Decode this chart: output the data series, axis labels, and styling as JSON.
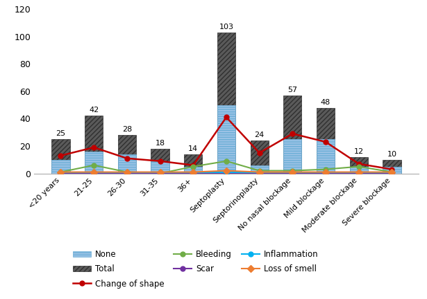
{
  "categories": [
    "<20 years",
    "21-25",
    "26-30",
    "31-35",
    "36+",
    "Septoplasty",
    "Septorinoplasty",
    "No nasal blockage",
    "Mild blockage",
    "Moderate blockage",
    "Severe blockage"
  ],
  "total_values": [
    25,
    42,
    28,
    18,
    14,
    103,
    24,
    57,
    48,
    12,
    10
  ],
  "none_values": [
    10,
    16,
    14,
    9,
    5,
    50,
    6,
    25,
    25,
    5,
    5
  ],
  "change_of_shape": [
    13,
    19,
    11,
    9,
    6,
    41,
    15,
    29,
    23,
    7,
    3
  ],
  "bleeding": [
    1,
    6,
    1,
    0,
    5,
    9,
    2,
    2,
    3,
    5,
    1
  ],
  "scar": [
    0.3,
    0.3,
    0.3,
    0.3,
    0.3,
    0.3,
    0.3,
    0.3,
    0.3,
    0.3,
    0.3
  ],
  "inflammation": [
    0.6,
    0.6,
    0.6,
    0.6,
    0.6,
    0.6,
    0.6,
    0.6,
    0.6,
    0.6,
    0.6
  ],
  "loss_of_smell": [
    1,
    1,
    1,
    1,
    1,
    2,
    1,
    1,
    1,
    1,
    1
  ],
  "none_color": "#9dc3e6",
  "none_stripe_color": "#2e75b6",
  "total_color": "#404040",
  "change_color": "#c00000",
  "bleeding_color": "#70ad47",
  "scar_color": "#7030a0",
  "inflammation_color": "#00b0f0",
  "loss_color": "#ed7d31",
  "ylim": [
    0,
    120
  ],
  "yticks": [
    0,
    20,
    40,
    60,
    80,
    100,
    120
  ]
}
